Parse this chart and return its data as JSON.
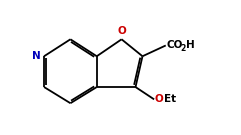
{
  "bg_color": "#ffffff",
  "bond_color": "#000000",
  "N_color": "#0000bb",
  "O_color": "#cc0000",
  "font_color": "#000000",
  "line_width": 1.3,
  "figsize": [
    2.41,
    1.35
  ],
  "dpi": 100,
  "xlim": [
    0,
    10
  ],
  "ylim": [
    0,
    5.6
  ]
}
